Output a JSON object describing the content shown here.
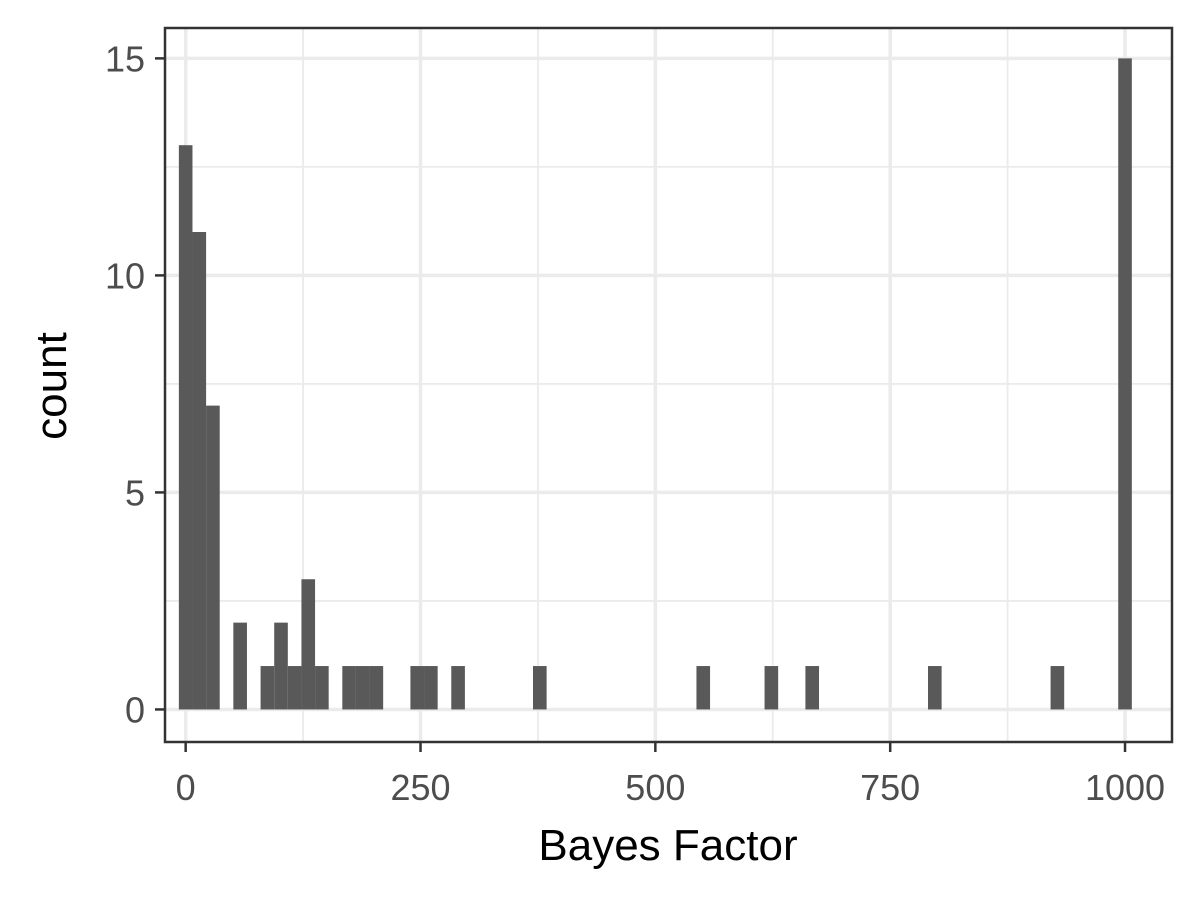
{
  "chart_data": {
    "type": "bar",
    "xlabel": "Bayes Factor",
    "ylabel": "count",
    "xlim": [
      -22,
      1050
    ],
    "ylim": [
      -0.75,
      15.7
    ],
    "x_ticks": [
      0,
      250,
      500,
      750,
      1000
    ],
    "x_minor_ticks": [
      125,
      375,
      625,
      875
    ],
    "y_ticks": [
      0,
      5,
      10,
      15
    ],
    "y_minor_ticks": [
      2.5,
      7.5,
      12.5
    ],
    "bin_width": 14.5,
    "bar_color": "#595959",
    "grid": true,
    "bins": [
      {
        "x": 0,
        "count": 13
      },
      {
        "x": 14.5,
        "count": 11
      },
      {
        "x": 29,
        "count": 7
      },
      {
        "x": 58,
        "count": 2
      },
      {
        "x": 87,
        "count": 1
      },
      {
        "x": 101.5,
        "count": 2
      },
      {
        "x": 116,
        "count": 1
      },
      {
        "x": 130.5,
        "count": 3
      },
      {
        "x": 145,
        "count": 1
      },
      {
        "x": 174,
        "count": 1
      },
      {
        "x": 188.5,
        "count": 1
      },
      {
        "x": 203,
        "count": 1
      },
      {
        "x": 246.5,
        "count": 1
      },
      {
        "x": 261,
        "count": 1
      },
      {
        "x": 290,
        "count": 1
      },
      {
        "x": 377,
        "count": 1
      },
      {
        "x": 551,
        "count": 1
      },
      {
        "x": 623.5,
        "count": 1
      },
      {
        "x": 667,
        "count": 1
      },
      {
        "x": 797.5,
        "count": 1
      },
      {
        "x": 928,
        "count": 1
      },
      {
        "x": 1000,
        "count": 15
      }
    ]
  }
}
